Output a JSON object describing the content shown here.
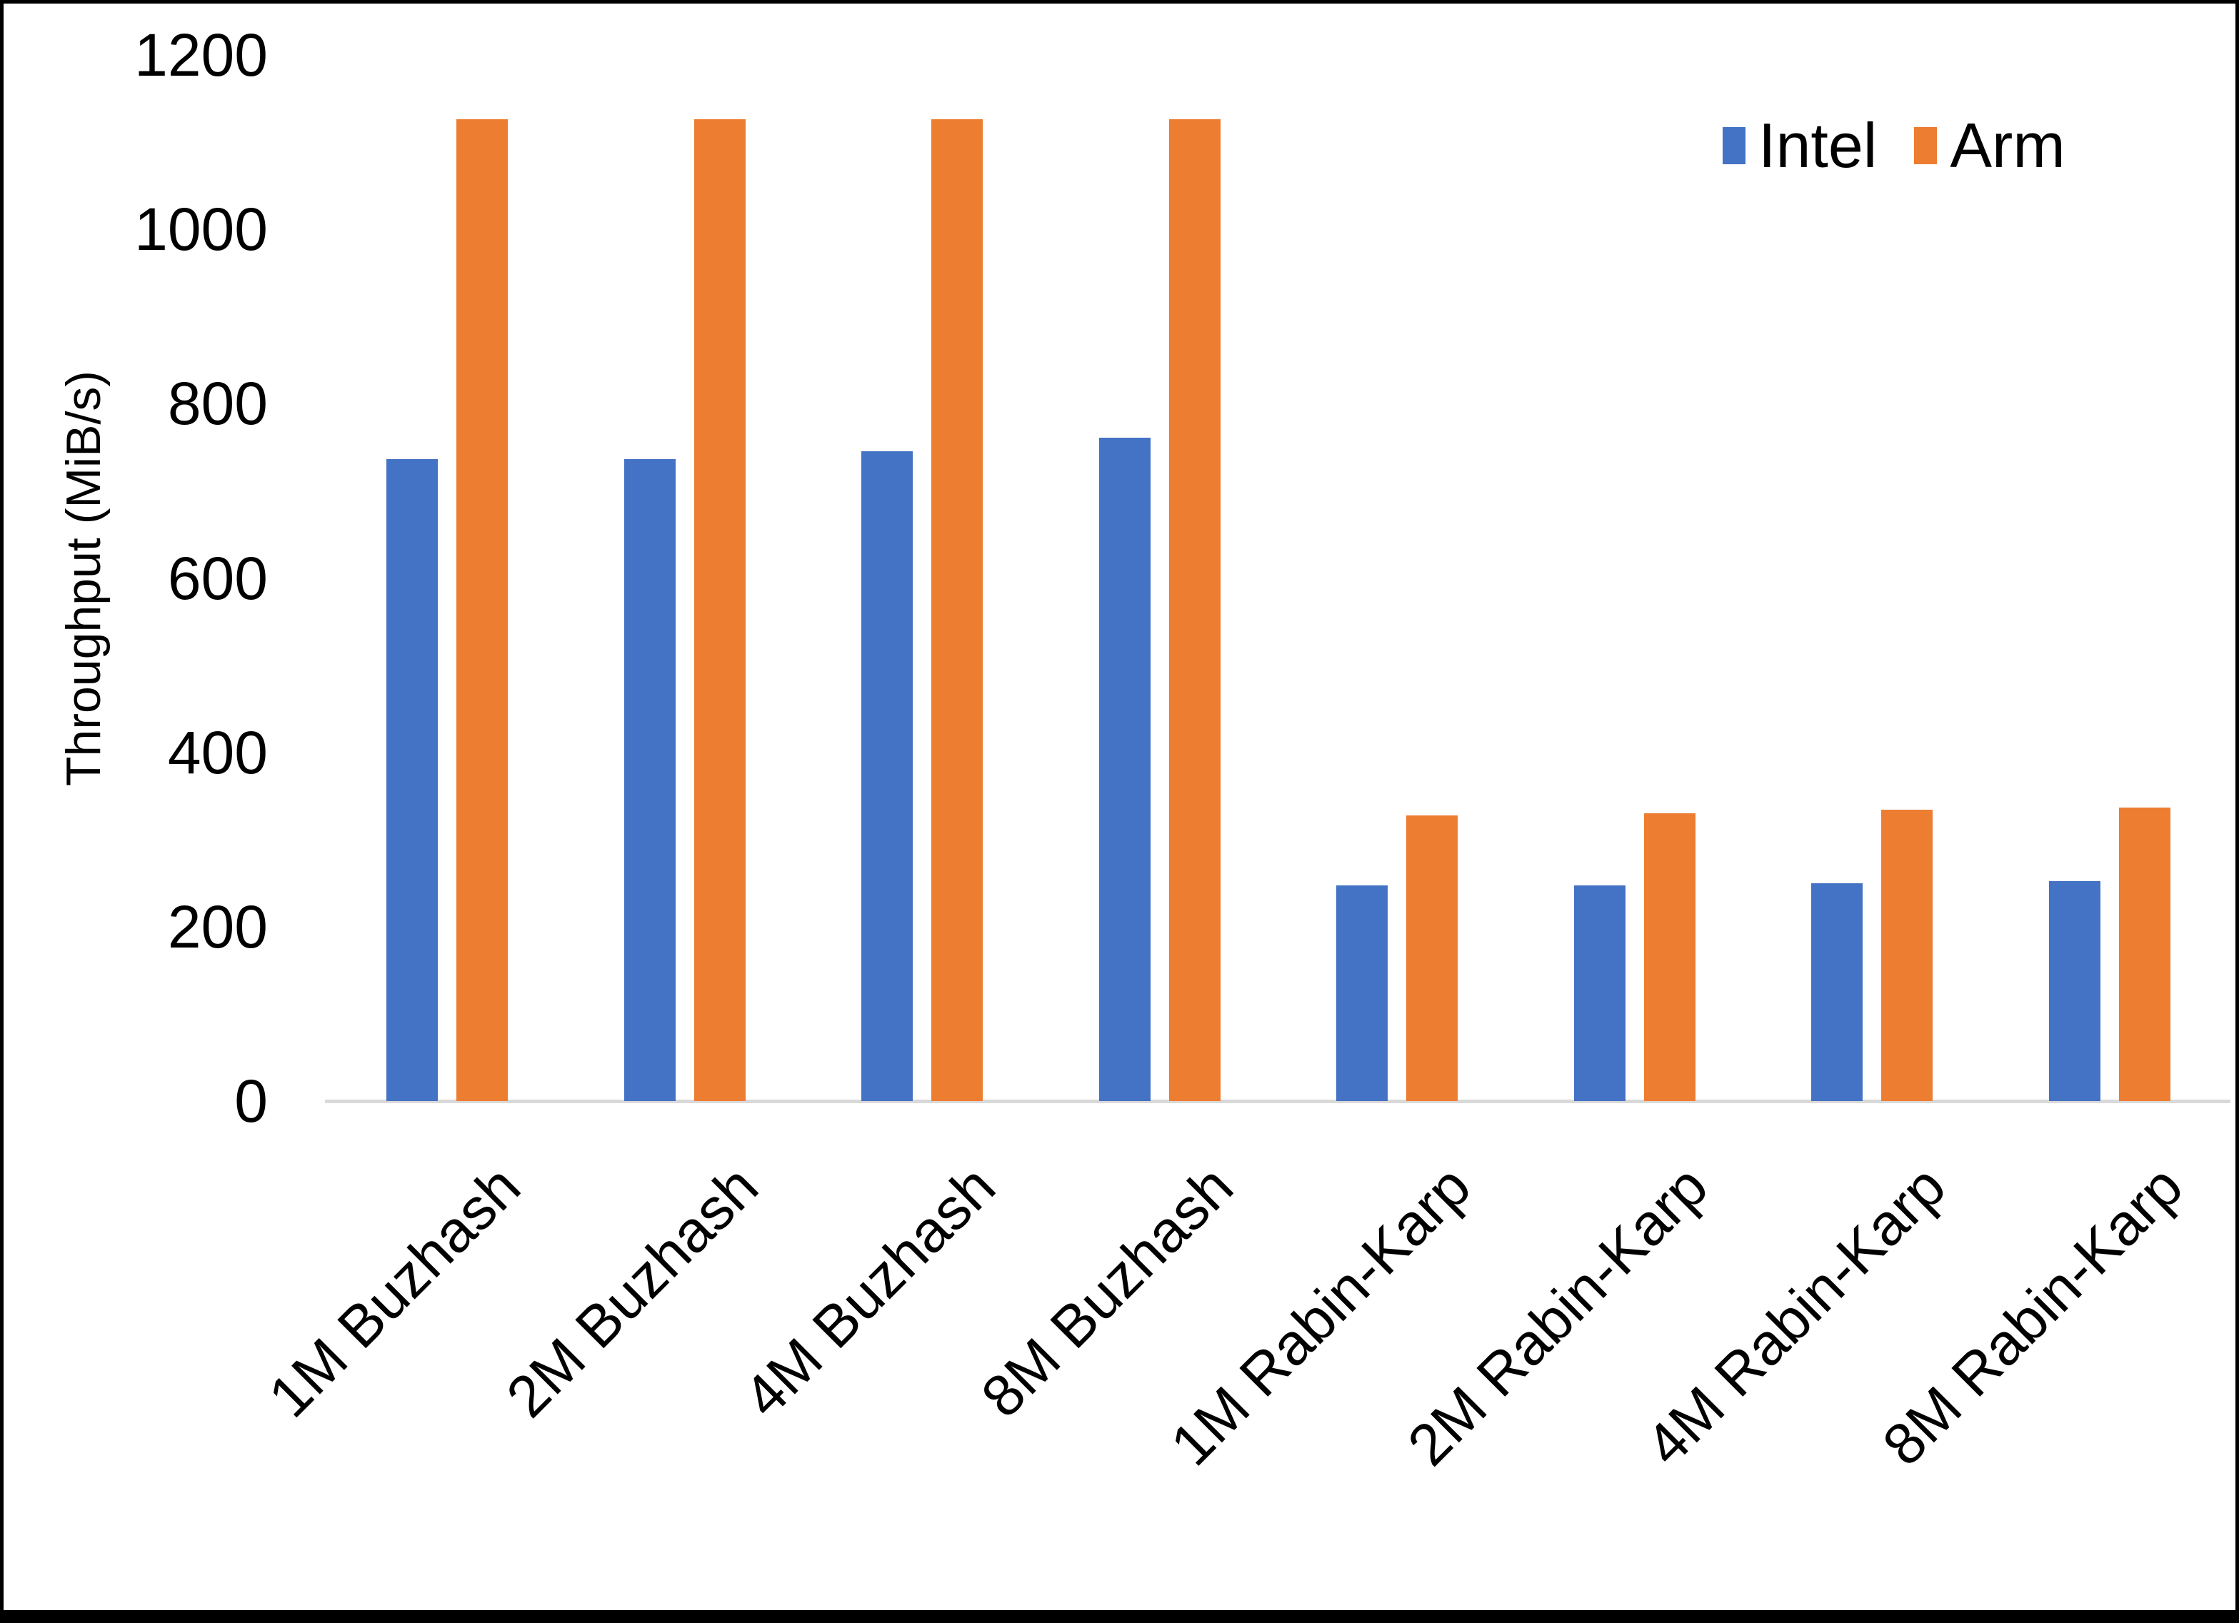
{
  "chart_data": {
    "type": "bar",
    "title": "",
    "xlabel": "",
    "ylabel": "Throughput (MiB/s)",
    "ylim": [
      0,
      1200
    ],
    "ytick_interval": 200,
    "yticks": [
      0,
      200,
      400,
      600,
      800,
      1000,
      1200
    ],
    "grid": false,
    "legend_position": "top-right",
    "categories": [
      "1M Buzhash",
      "2M Buzhash",
      "4M Buzhash",
      "8M Buzhash",
      "1M Rabin-Karp",
      "2M Rabin-Karp",
      "4M Rabin-Karp",
      "8M Rabin-Karp"
    ],
    "series": [
      {
        "name": "Intel",
        "color": "#4472C4",
        "values": [
          736,
          736,
          745,
          761,
          247,
          247,
          250,
          252
        ]
      },
      {
        "name": "Arm",
        "color": "#ED7D31",
        "values": [
          1126,
          1126,
          1126,
          1126,
          328,
          330,
          334,
          337
        ]
      }
    ]
  },
  "colors": {
    "background": "#FFFFFF",
    "axis_line": "#D9D9D9",
    "text": "#000000",
    "frame": "#000000"
  }
}
